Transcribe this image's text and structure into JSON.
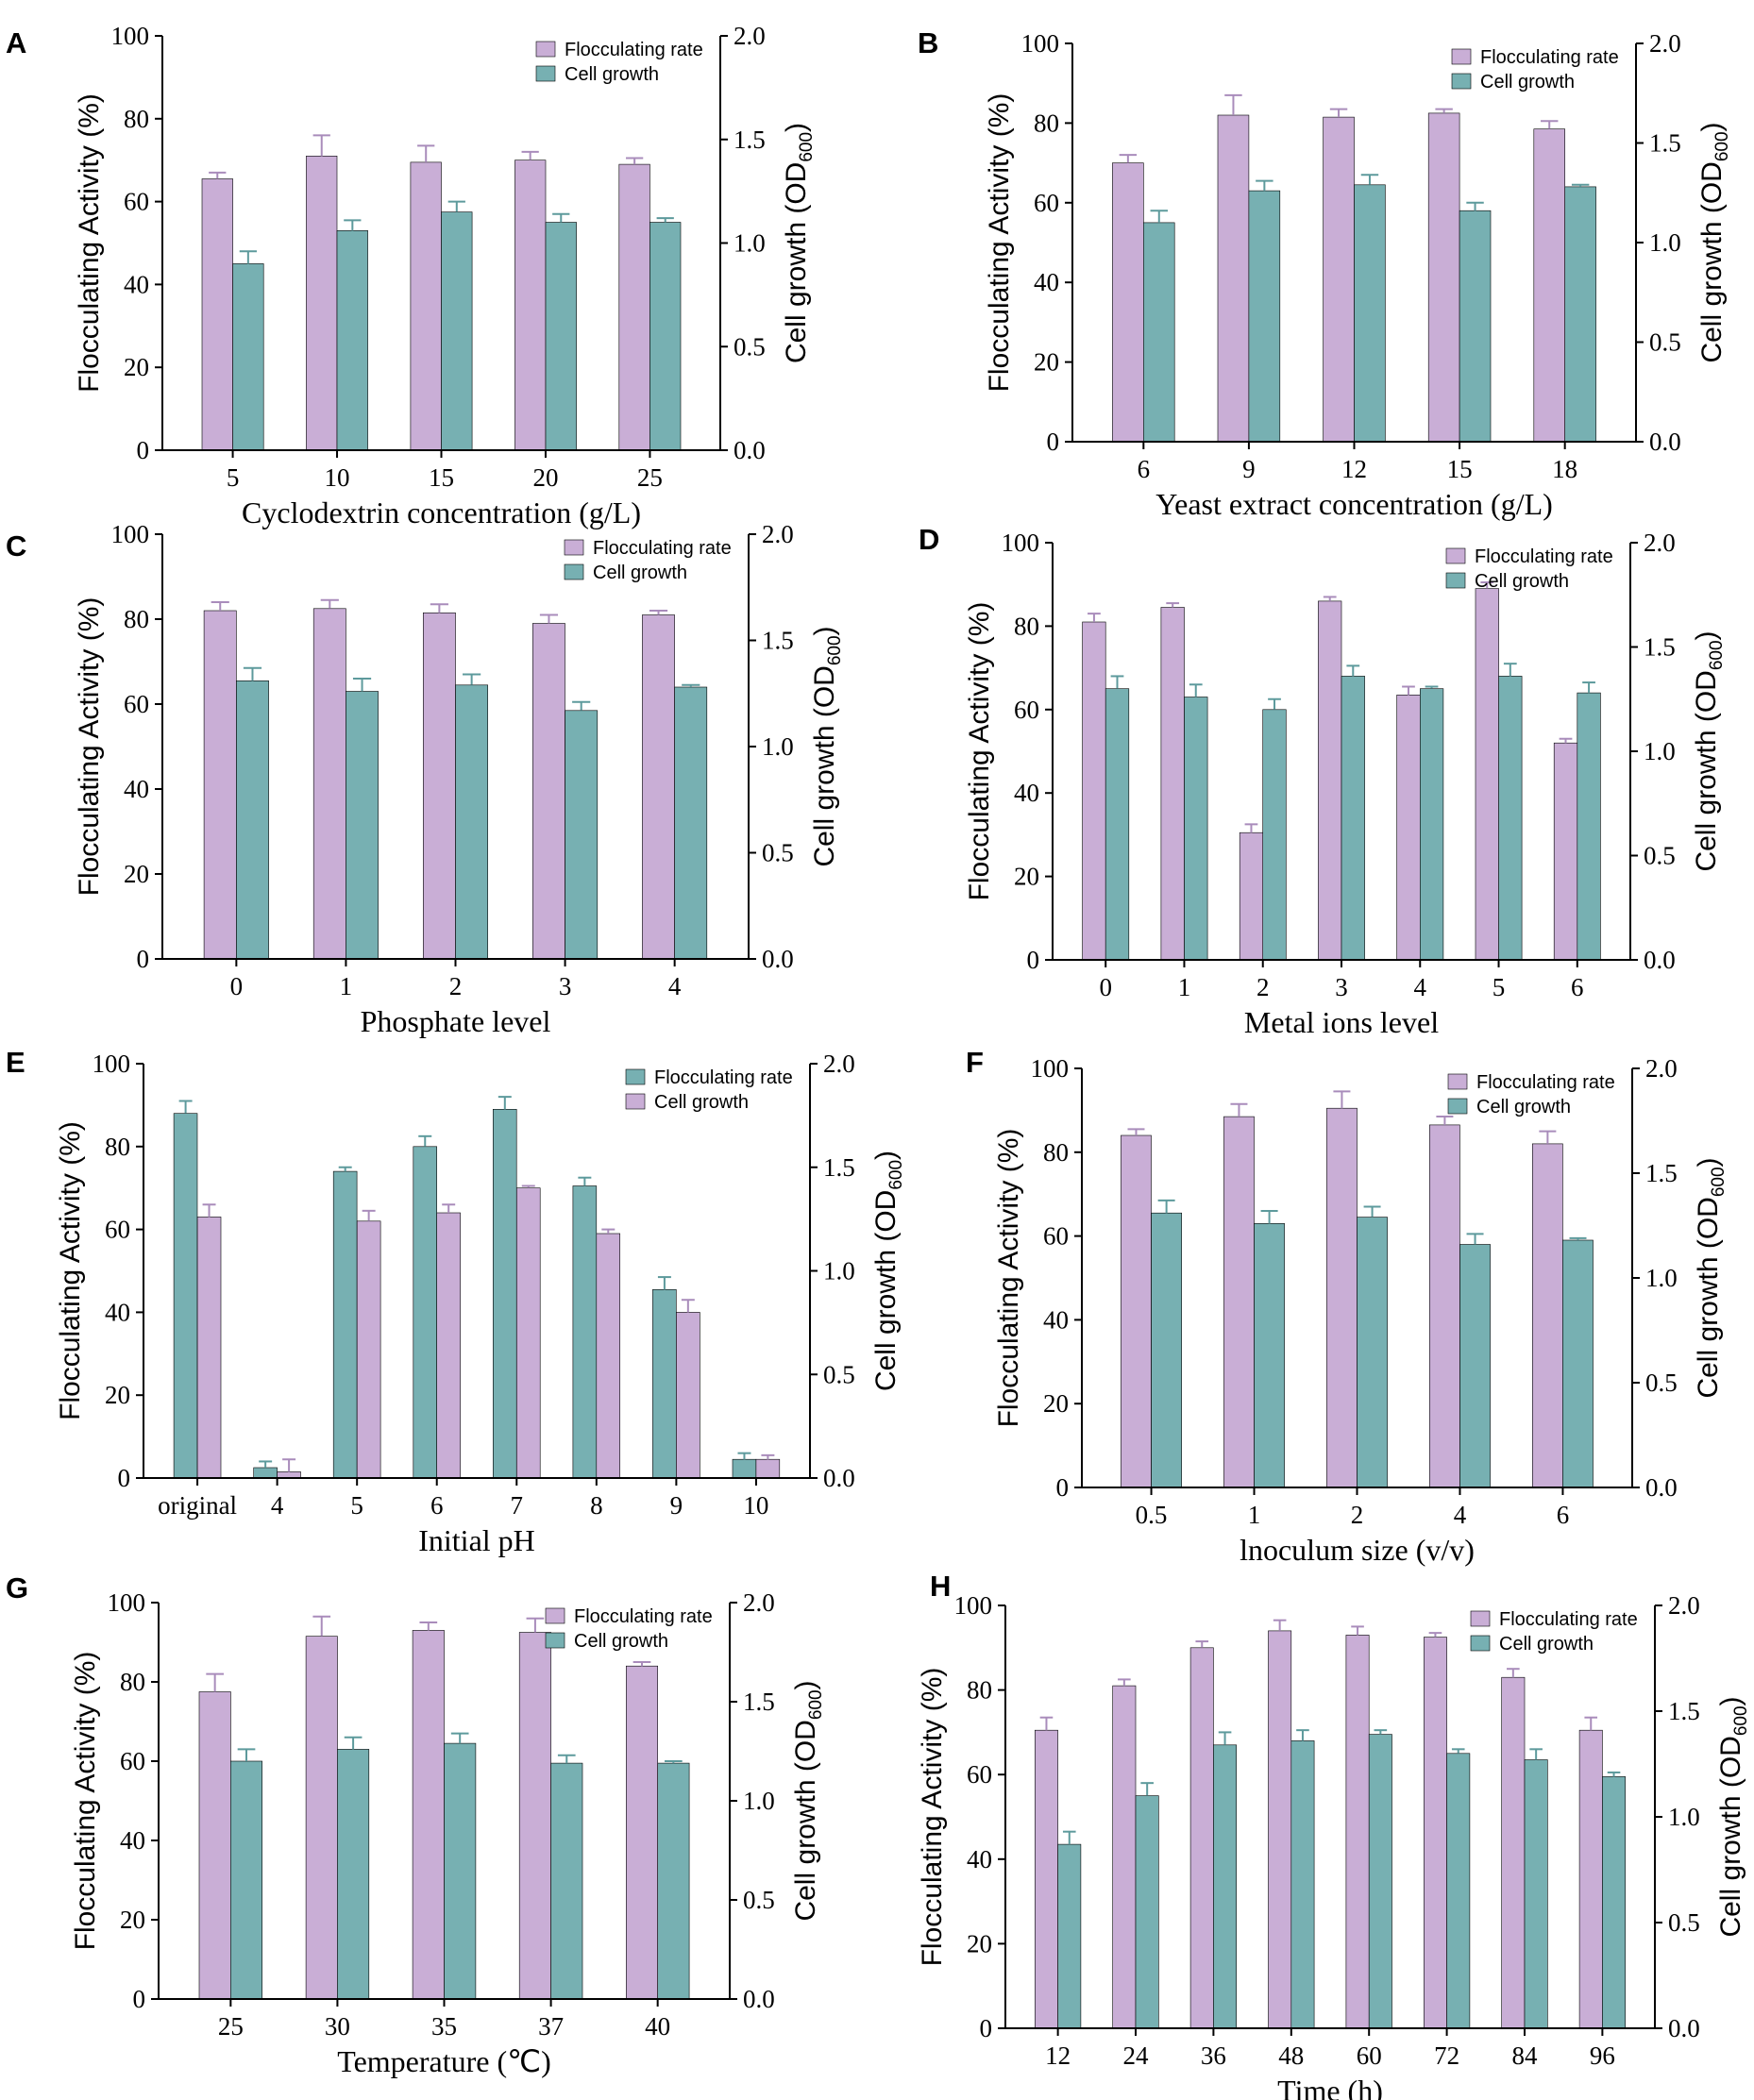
{
  "colors": {
    "lavender": "#c9aed6",
    "teal": "#77b0b2",
    "err_lavender": "#a98cbb",
    "err_teal": "#5d9a9c",
    "axis": "#000000"
  },
  "right_axis_label": "Cell growth (OD",
  "right_axis_subscript": "600",
  "right_axis_close": ")",
  "chart_data": [
    {
      "id": "A",
      "type": "bar",
      "letter": "A",
      "xlabel": "Cyclodextrin concentration (g/L)",
      "ylabel": "Flocculating Activity (%)",
      "ylim": [
        0,
        100
      ],
      "yticks": [
        "0",
        "20",
        "40",
        "60",
        "80",
        "100"
      ],
      "y2lim": [
        0,
        2.0
      ],
      "y2ticks": [
        "0.0",
        "0.5",
        "1.0",
        "1.5",
        "2.0"
      ],
      "categories": [
        "5",
        "10",
        "15",
        "20",
        "25"
      ],
      "series": [
        {
          "name": "Flocculating rate",
          "axis": "left",
          "color": "lavender",
          "values": [
            65.5,
            71,
            69.5,
            70,
            69
          ],
          "errors": [
            1.5,
            5,
            4,
            2,
            1.5
          ]
        },
        {
          "name": "Cell growth",
          "axis": "right",
          "color": "teal",
          "values": [
            0.9,
            1.06,
            1.15,
            1.1,
            1.1
          ],
          "errors": [
            0.06,
            0.05,
            0.05,
            0.04,
            0.02
          ]
        }
      ],
      "legend": [
        "Flocculating rate",
        "Cell growth"
      ],
      "legend_position": "top-right"
    },
    {
      "id": "B",
      "type": "bar",
      "letter": "B",
      "xlabel": "Yeast extract concentration (g/L)",
      "ylabel": "Flocculating Activity (%)",
      "ylim": [
        0,
        100
      ],
      "yticks": [
        "0",
        "20",
        "40",
        "60",
        "80",
        "100"
      ],
      "y2lim": [
        0,
        2.0
      ],
      "y2ticks": [
        "0.0",
        "0.5",
        "1.0",
        "1.5",
        "2.0"
      ],
      "categories": [
        "6",
        "9",
        "12",
        "15",
        "18"
      ],
      "series": [
        {
          "name": "Flocculating rate",
          "axis": "left",
          "color": "lavender",
          "values": [
            70,
            82,
            81.5,
            82.5,
            78.5
          ],
          "errors": [
            2,
            5,
            2,
            1,
            2
          ]
        },
        {
          "name": "Cell growth",
          "axis": "right",
          "color": "teal",
          "values": [
            1.1,
            1.26,
            1.29,
            1.16,
            1.28
          ],
          "errors": [
            0.06,
            0.05,
            0.05,
            0.04,
            0.01
          ]
        }
      ],
      "legend": [
        "Flocculating rate",
        "Cell growth"
      ],
      "legend_position": "top-right"
    },
    {
      "id": "C",
      "type": "bar",
      "letter": "C",
      "xlabel": "Phosphate level",
      "ylabel": "Flocculating Activity (%)",
      "ylim": [
        0,
        100
      ],
      "yticks": [
        "0",
        "20",
        "40",
        "60",
        "80",
        "100"
      ],
      "y2lim": [
        0,
        2.0
      ],
      "y2ticks": [
        "0.0",
        "0.5",
        "1.0",
        "1.5",
        "2.0"
      ],
      "categories": [
        "0",
        "1",
        "2",
        "3",
        "4"
      ],
      "series": [
        {
          "name": "Flocculating rate",
          "axis": "left",
          "color": "lavender",
          "values": [
            82,
            82.5,
            81.5,
            79,
            81
          ],
          "errors": [
            2,
            2,
            2,
            2,
            1
          ]
        },
        {
          "name": "Cell growth",
          "axis": "right",
          "color": "teal",
          "values": [
            1.31,
            1.26,
            1.29,
            1.17,
            1.28
          ],
          "errors": [
            0.06,
            0.06,
            0.05,
            0.04,
            0.01
          ]
        }
      ],
      "legend": [
        "Flocculating rate",
        "Cell growth"
      ],
      "legend_position": "top-right"
    },
    {
      "id": "D",
      "type": "bar",
      "letter": "D",
      "xlabel": "Metal ions level",
      "ylabel": "Flocculating Activity (%)",
      "ylim": [
        0,
        100
      ],
      "yticks": [
        "0",
        "20",
        "40",
        "60",
        "80",
        "100"
      ],
      "y2lim": [
        0,
        2.0
      ],
      "y2ticks": [
        "0.0",
        "0.5",
        "1.0",
        "1.5",
        "2.0"
      ],
      "categories": [
        "0",
        "1",
        "2",
        "3",
        "4",
        "5",
        "6"
      ],
      "series": [
        {
          "name": "Flocculating rate",
          "axis": "left",
          "color": "lavender",
          "values": [
            81,
            84.5,
            30.5,
            86,
            63.5,
            89,
            52
          ],
          "errors": [
            2,
            1,
            2,
            1,
            2,
            1.5,
            1
          ]
        },
        {
          "name": "Cell growth",
          "axis": "right",
          "color": "teal",
          "values": [
            1.3,
            1.26,
            1.2,
            1.36,
            1.3,
            1.36,
            1.28
          ],
          "errors": [
            0.06,
            0.06,
            0.05,
            0.05,
            0.01,
            0.06,
            0.05
          ]
        }
      ],
      "legend": [
        "Flocculating rate",
        "Cell growth"
      ],
      "legend_position": "top-right"
    },
    {
      "id": "E",
      "type": "bar",
      "letter": "E",
      "xlabel": "Initial pH",
      "ylabel": "Flocculating Activity (%)",
      "ylim": [
        0,
        100
      ],
      "yticks": [
        "0",
        "20",
        "40",
        "60",
        "80",
        "100"
      ],
      "y2lim": [
        0,
        2.0
      ],
      "y2ticks": [
        "0.0",
        "0.5",
        "1.0",
        "1.5",
        "2.0"
      ],
      "categories": [
        "original",
        "4",
        "5",
        "6",
        "7",
        "8",
        "9",
        "10"
      ],
      "series": [
        {
          "name": "Flocculating rate",
          "axis": "left",
          "color": "teal",
          "values": [
            88,
            2.5,
            74,
            80,
            89,
            70.5,
            45.5,
            4.5
          ],
          "errors": [
            3,
            1.5,
            1,
            2.5,
            3,
            2,
            3,
            1.5
          ]
        },
        {
          "name": "Cell growth",
          "axis": "right",
          "color": "lavender",
          "values": [
            1.26,
            0.03,
            1.24,
            1.28,
            1.4,
            1.18,
            0.8,
            0.09
          ],
          "errors": [
            0.06,
            0.06,
            0.05,
            0.04,
            0.01,
            0.02,
            0.06,
            0.02
          ]
        }
      ],
      "legend": [
        "Flocculating rate",
        "Cell growth"
      ],
      "legend_position": "top-right"
    },
    {
      "id": "F",
      "type": "bar",
      "letter": "F",
      "xlabel": "lnoculum size (v/v)",
      "ylabel": "Flocculating Activity (%)",
      "ylim": [
        0,
        100
      ],
      "yticks": [
        "0",
        "20",
        "40",
        "60",
        "80",
        "100"
      ],
      "y2lim": [
        0,
        2.0
      ],
      "y2ticks": [
        "0.0",
        "0.5",
        "1.0",
        "1.5",
        "2.0"
      ],
      "categories": [
        "0.5",
        "1",
        "2",
        "4",
        "6"
      ],
      "series": [
        {
          "name": "Flocculating rate",
          "axis": "left",
          "color": "lavender",
          "values": [
            84,
            88.5,
            90.5,
            86.5,
            82
          ],
          "errors": [
            1.5,
            3,
            4,
            2,
            3
          ]
        },
        {
          "name": "Cell growth",
          "axis": "right",
          "color": "teal",
          "values": [
            1.31,
            1.26,
            1.29,
            1.16,
            1.18
          ],
          "errors": [
            0.06,
            0.06,
            0.05,
            0.05,
            0.01
          ]
        }
      ],
      "legend": [
        "Flocculating rate",
        "Cell growth"
      ],
      "legend_position": "top-right"
    },
    {
      "id": "G",
      "type": "bar",
      "letter": "G",
      "xlabel": "Temperature (℃)",
      "ylabel": "Flocculating Activity (%)",
      "ylim": [
        0,
        100
      ],
      "yticks": [
        "0",
        "20",
        "40",
        "60",
        "80",
        "100"
      ],
      "y2lim": [
        0,
        2.0
      ],
      "y2ticks": [
        "0.0",
        "0.5",
        "1.0",
        "1.5",
        "2.0"
      ],
      "categories": [
        "25",
        "30",
        "35",
        "37",
        "40"
      ],
      "series": [
        {
          "name": "Flocculating rate",
          "axis": "left",
          "color": "lavender",
          "values": [
            77.5,
            91.5,
            93,
            92.5,
            84
          ],
          "errors": [
            4.5,
            5,
            2,
            3.5,
            1
          ]
        },
        {
          "name": "Cell growth",
          "axis": "right",
          "color": "teal",
          "values": [
            1.2,
            1.26,
            1.29,
            1.19,
            1.19
          ],
          "errors": [
            0.06,
            0.06,
            0.05,
            0.04,
            0.01
          ]
        }
      ],
      "legend": [
        "Flocculating rate",
        "Cell growth"
      ],
      "legend_position": "top-right"
    },
    {
      "id": "H",
      "type": "bar",
      "letter": "H",
      "xlabel": "Time (h)",
      "ylabel": "Flocculating Activity (%)",
      "ylim": [
        0,
        100
      ],
      "yticks": [
        "0",
        "20",
        "40",
        "60",
        "80",
        "100"
      ],
      "y2lim": [
        0,
        2.0
      ],
      "y2ticks": [
        "0.0",
        "0.5",
        "1.0",
        "1.5",
        "2.0"
      ],
      "categories": [
        "12",
        "24",
        "36",
        "48",
        "60",
        "72",
        "84",
        "96"
      ],
      "series": [
        {
          "name": "Flocculating rate",
          "axis": "left",
          "color": "lavender",
          "values": [
            70.5,
            81,
            90,
            94,
            93,
            92.5,
            83,
            70.5
          ],
          "errors": [
            3,
            1.5,
            1.5,
            2.5,
            2,
            1,
            2,
            3
          ]
        },
        {
          "name": "Cell growth",
          "axis": "right",
          "color": "teal",
          "values": [
            0.87,
            1.1,
            1.34,
            1.36,
            1.39,
            1.3,
            1.27,
            1.19
          ],
          "errors": [
            0.06,
            0.06,
            0.06,
            0.05,
            0.02,
            0.02,
            0.05,
            0.02
          ]
        }
      ],
      "legend": [
        "Flocculating rate",
        "Cell growth"
      ],
      "legend_position": "top-right"
    }
  ]
}
